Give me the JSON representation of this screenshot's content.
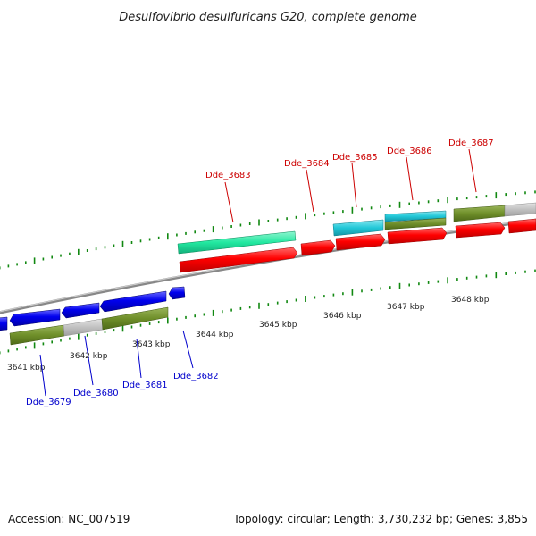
{
  "title": "Desulfovibrio desulfuricans G20, complete genome",
  "footer": {
    "accession": "Accession: NC_007519",
    "summary": "Topology: circular; Length: 3,730,232 bp; Genes: 3,855"
  },
  "colors": {
    "forward_cds": "#ff0000",
    "reverse_cds": "#0000ee",
    "forward_label": "#cc0000",
    "reverse_label": "#0000cc",
    "rna_like": "#22e8a0",
    "cyan_feature": "#22c8d8",
    "olive_feature": "#6f8f2a",
    "gray_feature": "#c0c0c0",
    "tick": "#118811",
    "backbone": "#888888"
  },
  "scale": {
    "kbp_labels": [
      "3641 kbp",
      "3642 kbp",
      "3643 kbp",
      "3644 kbp",
      "3645 kbp",
      "3646 kbp",
      "3647 kbp",
      "3648 kbp"
    ]
  },
  "forward_genes": [
    {
      "id": "Dde_3683"
    },
    {
      "id": "Dde_3684"
    },
    {
      "id": "Dde_3685"
    },
    {
      "id": "Dde_3686"
    },
    {
      "id": "Dde_3687"
    }
  ],
  "reverse_genes": [
    {
      "id": "Dde_3679"
    },
    {
      "id": "Dde_3680"
    },
    {
      "id": "Dde_3681"
    },
    {
      "id": "Dde_3682"
    }
  ]
}
